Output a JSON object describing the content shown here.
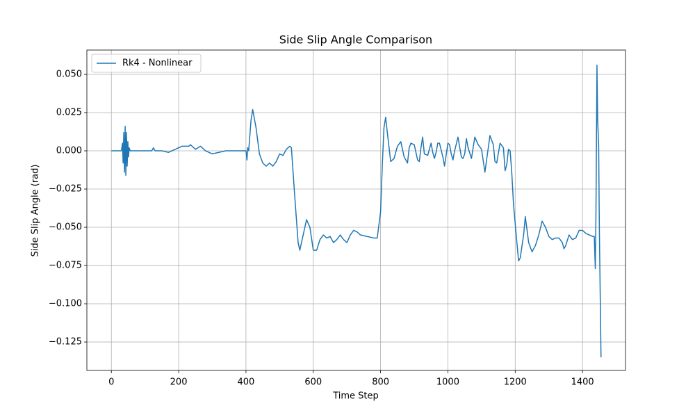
{
  "chart_data": {
    "type": "line",
    "title": "Side Slip Angle Comparison",
    "x_label": "Time Step",
    "y_label": "Side Slip Angle (rad)",
    "x": [
      0,
      30,
      33,
      35,
      37,
      39,
      41,
      43,
      45,
      47,
      49,
      51,
      53,
      56,
      120,
      125,
      130,
      150,
      170,
      210,
      230,
      235,
      250,
      265,
      280,
      300,
      340,
      400,
      403,
      405,
      408,
      415,
      420,
      430,
      440,
      450,
      460,
      470,
      480,
      490,
      500,
      510,
      520,
      530,
      535,
      545,
      555,
      560,
      570,
      580,
      590,
      600,
      610,
      620,
      630,
      640,
      650,
      660,
      670,
      680,
      690,
      700,
      710,
      720,
      730,
      740,
      760,
      780,
      790,
      800,
      805,
      810,
      815,
      820,
      830,
      840,
      850,
      860,
      870,
      880,
      885,
      890,
      900,
      910,
      915,
      920,
      925,
      930,
      940,
      950,
      955,
      960,
      965,
      970,
      975,
      985,
      990,
      1000,
      1005,
      1010,
      1015,
      1020,
      1030,
      1040,
      1045,
      1050,
      1055,
      1060,
      1070,
      1080,
      1090,
      1100,
      1110,
      1115,
      1125,
      1135,
      1140,
      1145,
      1155,
      1165,
      1170,
      1175,
      1180,
      1185,
      1190,
      1195,
      1205,
      1210,
      1215,
      1225,
      1230,
      1240,
      1250,
      1260,
      1270,
      1280,
      1290,
      1300,
      1310,
      1320,
      1330,
      1340,
      1345,
      1350,
      1360,
      1370,
      1380,
      1390,
      1400,
      1410,
      1420,
      1430,
      1435,
      1438,
      1440,
      1443,
      1445,
      1448,
      1450,
      1455
    ],
    "series": [
      {
        "name": "Rk4 - Nonlinear",
        "color": "#1f77b4",
        "values": [
          0,
          0,
          0.005,
          -0.008,
          0.012,
          -0.014,
          0.016,
          -0.016,
          0.012,
          -0.01,
          0.006,
          -0.004,
          0.002,
          0,
          0,
          0.002,
          0,
          0,
          -0.001,
          0.003,
          0.003,
          0.004,
          0.001,
          0.003,
          0,
          -0.002,
          0,
          0,
          -0.006,
          0.002,
          0,
          0.02,
          0.027,
          0.015,
          -0.002,
          -0.008,
          -0.01,
          -0.008,
          -0.01,
          -0.007,
          -0.002,
          -0.003,
          0.001,
          0.003,
          0.002,
          -0.03,
          -0.06,
          -0.065,
          -0.055,
          -0.045,
          -0.05,
          -0.065,
          -0.065,
          -0.058,
          -0.055,
          -0.057,
          -0.056,
          -0.06,
          -0.058,
          -0.055,
          -0.058,
          -0.06,
          -0.055,
          -0.052,
          -0.053,
          -0.055,
          -0.056,
          -0.057,
          -0.057,
          -0.04,
          -0.01,
          0.015,
          0.022,
          0.012,
          -0.007,
          -0.005,
          0.003,
          0.006,
          -0.004,
          -0.008,
          0.002,
          0.005,
          0.004,
          -0.006,
          -0.007,
          0.002,
          0.009,
          -0.002,
          -0.003,
          0.005,
          -0.001,
          -0.005,
          -0.001,
          0.005,
          0.005,
          -0.004,
          -0.01,
          0.005,
          0.004,
          -0.002,
          -0.006,
          0,
          0.009,
          -0.004,
          -0.005,
          -0.002,
          0.008,
          0.002,
          -0.005,
          0.009,
          0.004,
          0.001,
          -0.014,
          -0.006,
          0.01,
          0.004,
          -0.007,
          -0.008,
          0.005,
          0.002,
          -0.013,
          -0.009,
          0.001,
          0,
          -0.015,
          -0.035,
          -0.06,
          -0.072,
          -0.07,
          -0.055,
          -0.043,
          -0.06,
          -0.066,
          -0.062,
          -0.055,
          -0.046,
          -0.05,
          -0.056,
          -0.058,
          -0.057,
          -0.057,
          -0.06,
          -0.064,
          -0.062,
          -0.055,
          -0.058,
          -0.057,
          -0.052,
          -0.052,
          -0.054,
          -0.055,
          -0.056,
          -0.056,
          -0.077,
          -0.04,
          0.056,
          0.02,
          0.004,
          -0.05,
          -0.135
        ]
      }
    ],
    "xlim": [
      -72.75,
      1527.75
    ],
    "xticks": [
      0,
      200,
      400,
      600,
      800,
      1000,
      1200,
      1400
    ],
    "ylim": [
      -0.1436,
      0.0659
    ],
    "yticks": [
      {
        "value": -0.125,
        "label": "−0.125"
      },
      {
        "value": -0.1,
        "label": "−0.100"
      },
      {
        "value": -0.075,
        "label": "−0.075"
      },
      {
        "value": -0.05,
        "label": "−0.050"
      },
      {
        "value": -0.025,
        "label": "−0.025"
      },
      {
        "value": 0,
        "label": "0.000"
      },
      {
        "value": 0.025,
        "label": "0.025"
      },
      {
        "value": 0.05,
        "label": "0.050"
      }
    ],
    "grid": true,
    "legend": "upper left"
  }
}
